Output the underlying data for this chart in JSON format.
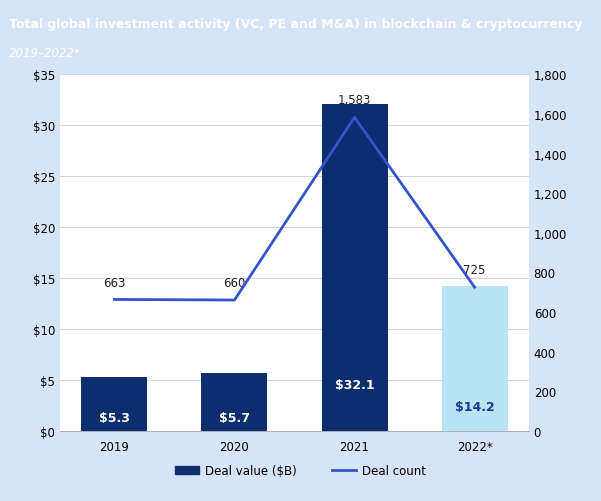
{
  "title_line1": "Total global investment activity (VC, PE and M&A) in blockchain & cryptocurrency",
  "title_line2": "2019–2022*",
  "categories": [
    "2019",
    "2020",
    "2021",
    "2022*"
  ],
  "bar_values": [
    5.3,
    5.7,
    32.1,
    14.2
  ],
  "deal_counts": [
    663,
    660,
    1583,
    725
  ],
  "bar_colors": [
    "#0d2d6e",
    "#0d2d6e",
    "#0d2d6e",
    "#b8e4f5"
  ],
  "bar_labels": [
    "$5.3",
    "$5.7",
    "$32.1",
    "$14.2"
  ],
  "bar_label_colors": [
    "#ffffff",
    "#ffffff",
    "#ffffff",
    "#1a3a8c"
  ],
  "deal_count_labels": [
    "663",
    "660",
    "1,583",
    "725"
  ],
  "line_color": "#3355cc",
  "title_bg_color": "#3355cc",
  "title_text_color": "#ffffff",
  "ylim_left": [
    0,
    35
  ],
  "ylim_right": [
    0,
    1800
  ],
  "yticks_left": [
    0,
    5,
    10,
    15,
    20,
    25,
    30,
    35
  ],
  "ytick_labels_left": [
    "$0",
    "$5",
    "$10",
    "$15",
    "$20",
    "$25",
    "$30",
    "$35"
  ],
  "yticks_right": [
    0,
    200,
    400,
    600,
    800,
    1000,
    1200,
    1400,
    1600,
    1800
  ],
  "ytick_labels_right": [
    "0",
    "200",
    "400",
    "600",
    "800",
    "1,000",
    "1,200",
    "1,400",
    "1,600",
    "1,800"
  ],
  "legend_bar_label": "Deal value ($B)",
  "legend_line_label": "Deal count",
  "bg_color": "#d6e4f7",
  "plot_bg_color": "#ffffff",
  "border_color": "#3355cc"
}
